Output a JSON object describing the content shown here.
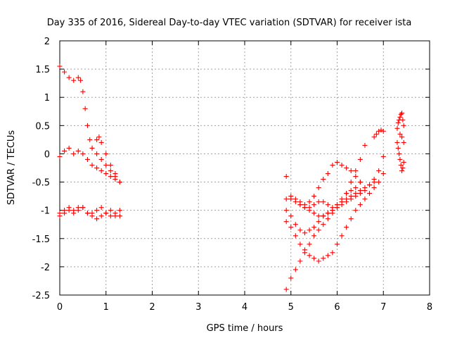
{
  "chart_data": {
    "type": "scatter",
    "title": "Day 335 of 2016, Sidereal Day-to-day VTEC variation (SDTVAR) for receiver ista",
    "xlabel": "GPS time / hours",
    "ylabel": "SDTVAR / TECUs",
    "xlim": [
      0,
      8
    ],
    "ylim": [
      -2.5,
      2
    ],
    "xticks": [
      0,
      1,
      2,
      3,
      4,
      5,
      6,
      7,
      8
    ],
    "xtick_labels": [
      "0",
      "1",
      "2",
      "3",
      "4",
      "5",
      "6",
      "7",
      "8"
    ],
    "yticks": [
      -2.5,
      -2,
      -1.5,
      -1,
      -0.5,
      0,
      0.5,
      1,
      1.5,
      2
    ],
    "ytick_labels": [
      "-2.5",
      "-2",
      "-1.5",
      "-1",
      "-0.5",
      "0",
      "0.5",
      "1",
      "1.5",
      "2"
    ],
    "grid": true,
    "marker": "+",
    "color": "#ff0000",
    "series": [
      {
        "name": "trace-1",
        "x": [
          0,
          0.1,
          0.2,
          0.3,
          0.4,
          0.45,
          0.5,
          0.55,
          0.6,
          0.65,
          0.7,
          0.8,
          0.9,
          1.0,
          1.1,
          1.2,
          1.3
        ],
        "y": [
          1.55,
          1.45,
          1.35,
          1.3,
          1.35,
          1.3,
          1.1,
          0.8,
          0.5,
          0.25,
          0.1,
          0.0,
          -0.1,
          -0.2,
          -0.3,
          -0.4,
          -0.5
        ]
      },
      {
        "name": "trace-2",
        "x": [
          0,
          0.1,
          0.2,
          0.3,
          0.4,
          0.5,
          0.6,
          0.7,
          0.8,
          0.9,
          1.0,
          1.1,
          1.2,
          1.3
        ],
        "y": [
          -0.05,
          0.05,
          0.1,
          0.0,
          0.05,
          0.0,
          -0.1,
          -0.2,
          -0.25,
          -0.3,
          -0.35,
          -0.4,
          -0.45,
          -0.5
        ]
      },
      {
        "name": "trace-3",
        "x": [
          0.7,
          0.8,
          0.85,
          0.9,
          1.0,
          1.1,
          1.2,
          1.3
        ],
        "y": [
          0.1,
          0.25,
          0.3,
          0.2,
          0.0,
          -0.2,
          -0.35,
          -0.5
        ]
      },
      {
        "name": "trace-4",
        "x": [
          0,
          0.1,
          0.2,
          0.3,
          0.4,
          0.5,
          0.6,
          0.7,
          0.8,
          0.9,
          1.0,
          1.1,
          1.2,
          1.3
        ],
        "y": [
          -1.05,
          -1.0,
          -0.95,
          -1.0,
          -0.95,
          -0.95,
          -1.05,
          -1.05,
          -1.0,
          -0.95,
          -1.05,
          -1.0,
          -1.05,
          -1.0
        ]
      },
      {
        "name": "trace-5",
        "x": [
          0,
          0.1,
          0.2,
          0.3,
          0.4,
          0.5,
          0.6,
          0.7,
          0.8,
          0.9,
          1.0,
          1.1,
          1.2,
          1.3
        ],
        "y": [
          -1.1,
          -1.05,
          -1.0,
          -1.05,
          -1.0,
          -0.95,
          -1.05,
          -1.1,
          -1.15,
          -1.1,
          -1.05,
          -1.1,
          -1.1,
          -1.1
        ]
      },
      {
        "name": "trace-6",
        "x": [
          4.9,
          5.0,
          5.1,
          5.2,
          5.3,
          5.4,
          5.5,
          5.6,
          5.7,
          5.8,
          5.9,
          6.0,
          6.1,
          6.2,
          6.3,
          6.4,
          6.5,
          6.6
        ],
        "y": [
          -2.4,
          -2.2,
          -2.05,
          -1.9,
          -1.75,
          -1.6,
          -1.45,
          -1.35,
          -1.25,
          -1.15,
          -1.05,
          -0.95,
          -0.85,
          -0.7,
          -0.5,
          -0.3,
          -0.1,
          0.15
        ]
      },
      {
        "name": "trace-7",
        "x": [
          4.9,
          5.0,
          5.1,
          5.2,
          5.3,
          5.4,
          5.5,
          5.6,
          5.7,
          5.8,
          5.9,
          6.0,
          6.1,
          6.2,
          6.3,
          6.4,
          6.5
        ],
        "y": [
          -0.8,
          -0.75,
          -0.8,
          -0.85,
          -0.9,
          -0.85,
          -0.75,
          -0.6,
          -0.45,
          -0.35,
          -0.2,
          -0.15,
          -0.2,
          -0.25,
          -0.3,
          -0.4,
          -0.5
        ]
      },
      {
        "name": "trace-8",
        "x": [
          4.9,
          5.0,
          5.1,
          5.2,
          5.3,
          5.4,
          5.5,
          5.6,
          5.7,
          5.8,
          5.9,
          6.0,
          6.1,
          6.2,
          6.3,
          6.4,
          6.5,
          6.6,
          6.7,
          6.8,
          6.9,
          7.0
        ],
        "y": [
          -1.2,
          -1.3,
          -1.45,
          -1.6,
          -1.7,
          -1.8,
          -1.85,
          -1.9,
          -1.85,
          -1.8,
          -1.75,
          -1.6,
          -1.45,
          -1.3,
          -1.15,
          -1.0,
          -0.9,
          -0.8,
          -0.7,
          -0.6,
          -0.5,
          -0.35
        ]
      },
      {
        "name": "trace-9",
        "x": [
          4.9,
          5.0,
          5.1,
          5.2,
          5.3,
          5.4,
          5.5,
          5.6,
          5.7,
          5.8,
          5.9,
          6.0,
          6.1,
          6.2,
          6.3,
          6.4,
          6.5,
          6.6,
          6.7,
          6.8,
          6.9,
          7.0
        ],
        "y": [
          -1.0,
          -1.1,
          -1.25,
          -1.35,
          -1.4,
          -1.35,
          -1.3,
          -1.2,
          -1.1,
          -1.05,
          -1.0,
          -0.9,
          -0.85,
          -0.8,
          -0.75,
          -0.7,
          -0.65,
          -0.6,
          -0.55,
          -0.45,
          -0.3,
          -0.05
        ]
      },
      {
        "name": "trace-10",
        "x": [
          5.0,
          5.1,
          5.2,
          5.3,
          5.4,
          5.5,
          5.6,
          5.7,
          5.8,
          5.9,
          6.0,
          6.1,
          6.2,
          6.3,
          6.4,
          6.5
        ],
        "y": [
          -0.8,
          -0.85,
          -0.9,
          -0.95,
          -1.0,
          -1.05,
          -1.1,
          -1.1,
          -1.05,
          -1.0,
          -0.9,
          -0.8,
          -0.7,
          -0.65,
          -0.6,
          -0.5
        ]
      },
      {
        "name": "trace-11",
        "x": [
          5.2,
          5.3,
          5.4,
          5.5,
          5.6,
          5.7,
          5.8,
          5.9,
          6.0,
          6.1,
          6.2,
          6.3,
          6.4,
          6.5,
          6.6,
          6.7,
          6.8
        ],
        "y": [
          -0.9,
          -0.95,
          -0.95,
          -0.9,
          -0.85,
          -0.85,
          -0.9,
          -0.95,
          -0.95,
          -0.9,
          -0.85,
          -0.8,
          -0.75,
          -0.7,
          -0.65,
          -0.55,
          -0.5
        ]
      },
      {
        "name": "trace-12",
        "x": [
          6.8,
          6.85,
          6.9,
          6.95,
          7.0
        ],
        "y": [
          0.3,
          0.35,
          0.4,
          0.42,
          0.4
        ]
      },
      {
        "name": "trace-13",
        "x": [
          7.3,
          7.32,
          7.34,
          7.36,
          7.38,
          7.4,
          7.42,
          7.44
        ],
        "y": [
          0.45,
          0.55,
          0.6,
          0.65,
          0.7,
          0.72,
          0.6,
          0.5
        ]
      },
      {
        "name": "trace-14",
        "x": [
          7.3,
          7.32,
          7.34,
          7.36,
          7.38,
          7.4,
          7.42,
          7.44
        ],
        "y": [
          0.2,
          0.1,
          0.0,
          -0.1,
          -0.2,
          -0.3,
          -0.25,
          -0.15
        ]
      },
      {
        "name": "trace-15",
        "x": [
          7.36,
          7.4,
          7.44
        ],
        "y": [
          0.35,
          0.3,
          0.2
        ]
      },
      {
        "name": "outlier",
        "x": [
          4.9
        ],
        "y": [
          -0.4
        ]
      }
    ]
  }
}
